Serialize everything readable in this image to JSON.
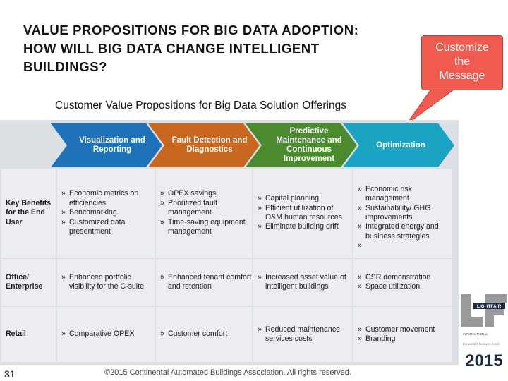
{
  "slide": {
    "title_lines": [
      "VALUE PROPOSITIONS FOR BIG DATA ADOPTION:",
      "HOW WILL BIG DATA CHANGE INTELLIGENT",
      "BUILDINGS?"
    ],
    "callout_lines": [
      "Customize",
      "the",
      "Message"
    ],
    "subtitle": "Customer Value Propositions for Big Data Solution Offerings",
    "page_number": "31",
    "footer": "©2015 Continental Automated Buildings Association. All rights reserved."
  },
  "colors": {
    "callout": "#f05a4f",
    "chevron_1": "#1e73b8",
    "chevron_2": "#c8671f",
    "chevron_3": "#4b8a2f",
    "chevron_4": "#1ba3c4"
  },
  "chevrons": [
    {
      "label": "Visualization and Reporting"
    },
    {
      "label": "Fault Detection and Diagnostics"
    },
    {
      "label": "Predictive Maintenance and Continuous Improvement"
    },
    {
      "label": "Optimization"
    }
  ],
  "rows": [
    {
      "header": "Key Benefits for the End User",
      "cells": [
        [
          "Economic metrics on efficiencies",
          "Benchmarking",
          "Customized data presentment"
        ],
        [
          "OPEX savings",
          "Prioritized fault management",
          "Time-saving equipment management"
        ],
        [
          "Capital planning",
          "Efficient utilization of O&M human resources",
          "Eliminate building drift"
        ],
        [
          "Economic risk management",
          "Sustainability/ GHG improvements",
          "Integrated energy and business strategies"
        ]
      ]
    },
    {
      "header": "Office/ Enterprise",
      "cells": [
        [
          "Enhanced portfolio visibility for the C-suite"
        ],
        [
          "Enhanced tenant comfort and retention"
        ],
        [
          "Increased asset value of intelligent buildings"
        ],
        [
          "CSR demonstration",
          "Space utilization"
        ]
      ]
    },
    {
      "header": "Retail",
      "cells": [
        [
          "Comparative OPEX"
        ],
        [
          "Customer comfort"
        ],
        [
          "Reduced maintenance services costs"
        ],
        [
          "Customer movement",
          "Branding"
        ]
      ]
    }
  ],
  "logo": {
    "brand": "LIGHTFAIR",
    "sub": "INTERNATIONAL",
    "tagline": "the world's luminary event",
    "year": "2015"
  }
}
